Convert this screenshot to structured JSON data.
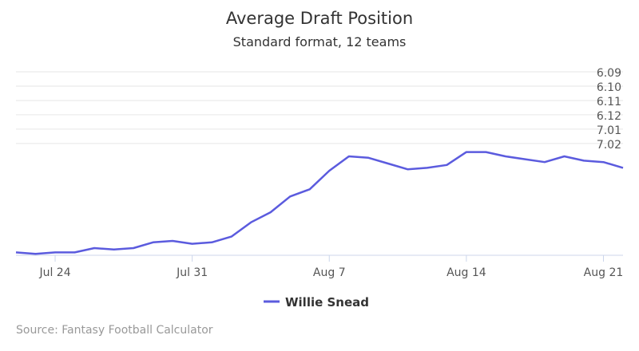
{
  "chart_data": {
    "type": "line",
    "title": "Average Draft Position",
    "subtitle": "Standard format, 12 teams",
    "credit": "Source: Fantasy Football Calculator",
    "x_labels": [
      "Jul 24",
      "Jul 31",
      "Aug 7",
      "Aug 14",
      "Aug 21"
    ],
    "y_labels": [
      "6.09",
      "6.10",
      "6.11",
      "6.12",
      "7.01",
      "7.02"
    ],
    "ylim": [
      9,
      21.8
    ],
    "y_tick_values": [
      9,
      10,
      11,
      12,
      13,
      14
    ],
    "grid": true,
    "legend_position": "bottom-center",
    "series": [
      {
        "name": "Willie Snead",
        "color": "#5b5bde",
        "x": [
          "Jul 22",
          "Jul 23",
          "Jul 24",
          "Jul 25",
          "Jul 26",
          "Jul 27",
          "Jul 28",
          "Jul 29",
          "Jul 30",
          "Jul 31",
          "Aug 1",
          "Aug 2",
          "Aug 3",
          "Aug 4",
          "Aug 5",
          "Aug 6",
          "Aug 7",
          "Aug 8",
          "Aug 9",
          "Aug 10",
          "Aug 11",
          "Aug 12",
          "Aug 13",
          "Aug 14",
          "Aug 15",
          "Aug 16",
          "Aug 17",
          "Aug 18",
          "Aug 19",
          "Aug 20",
          "Aug 21",
          "Aug 22"
        ],
        "values": [
          21.6,
          21.7,
          21.6,
          21.6,
          21.3,
          21.4,
          21.3,
          20.9,
          20.8,
          21.0,
          20.9,
          20.5,
          19.5,
          18.8,
          17.7,
          17.2,
          15.9,
          14.9,
          15.0,
          15.4,
          15.8,
          15.7,
          15.5,
          14.6,
          14.6,
          14.9,
          15.1,
          15.3,
          14.9,
          15.2,
          15.3,
          15.7
        ]
      }
    ]
  }
}
